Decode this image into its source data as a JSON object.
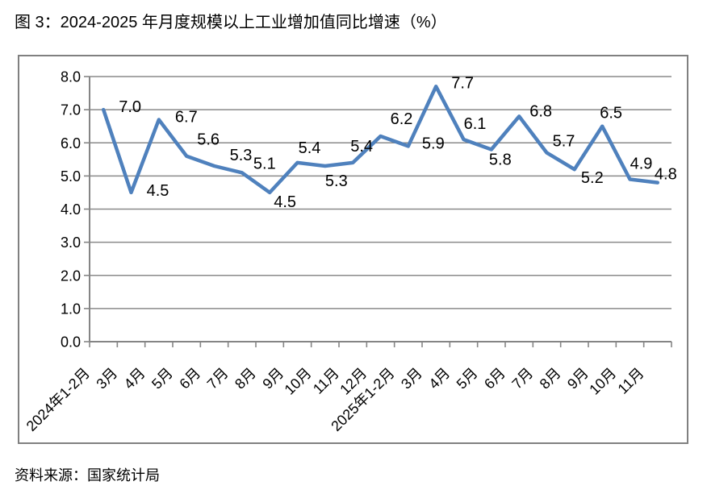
{
  "title": "图 3：2024-2025 年月度规模以上工业增加值同比增速（%）",
  "source": "资料来源：国家统计局",
  "colors": {
    "line": "#4F81BD",
    "grid": "#8A8A8A",
    "axis": "#858585",
    "frame_border": "#808080",
    "text": "#000000"
  },
  "chart_data": {
    "type": "line",
    "title": "图 3：2024-2025 年月度规模以上工业增加值同比增速（%）",
    "categories": [
      "2024年1-2月",
      "3月",
      "4月",
      "5月",
      "6月",
      "7月",
      "8月",
      "9月",
      "10月",
      "11月",
      "12月",
      "2025年1-2月",
      "3月",
      "4月",
      "5月",
      "6月",
      "7月",
      "8月",
      "9月",
      "10月",
      "11月"
    ],
    "values": [
      7.0,
      4.5,
      6.7,
      5.6,
      5.3,
      5.1,
      4.5,
      5.4,
      5.3,
      5.4,
      6.2,
      5.9,
      7.7,
      6.1,
      5.8,
      6.8,
      5.7,
      5.2,
      6.5,
      4.9,
      4.8
    ],
    "data_labels": [
      "7.0",
      "4.5",
      "6.7",
      "5.6",
      "5.3",
      "5.1",
      "4.5",
      "5.4",
      "5.3",
      "5.4",
      "6.2",
      "5.9",
      "7.7",
      "6.1",
      "5.8",
      "6.8",
      "5.7",
      "5.2",
      "6.5",
      "4.9",
      "4.8"
    ],
    "xlabel": "",
    "ylabel": "",
    "ylim": [
      0,
      8
    ],
    "ytick_step": 1,
    "ytick_labels": [
      "0.0",
      "1.0",
      "2.0",
      "3.0",
      "4.0",
      "5.0",
      "6.0",
      "7.0",
      "8.0"
    ],
    "x_tick_rotation_deg": 45,
    "grid": "horizontal",
    "legend": "none"
  }
}
